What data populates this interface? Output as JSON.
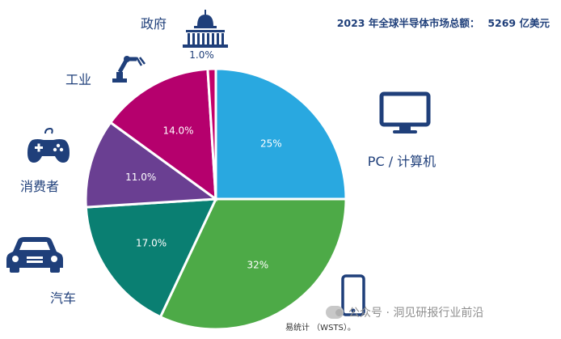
{
  "header": {
    "title": "2023 年全球半导体市场总额：",
    "value": "5269 亿美元"
  },
  "chart_data": {
    "type": "pie",
    "title": "2023 年全球半导体市场总额： 5269 亿美元",
    "slices": [
      {
        "category": "PC / 计算机",
        "value": 25,
        "label": "25%",
        "color": "#29a8e0",
        "icon": "monitor-icon"
      },
      {
        "category": "",
        "value": 32,
        "label": "32%",
        "color": "#4daa47",
        "icon": "smartphone-icon"
      },
      {
        "category": "汽车",
        "value": 17,
        "label": "17.0%",
        "color": "#0a7f72",
        "icon": "car-icon"
      },
      {
        "category": "消费者",
        "value": 11,
        "label": "11.0%",
        "color": "#6a3f92",
        "icon": "gamepad-icon"
      },
      {
        "category": "工业",
        "value": 14,
        "label": "14.0%",
        "color": "#b5006d",
        "icon": "robot-arm-icon"
      },
      {
        "category": "政府",
        "value": 1,
        "label": "1.0%",
        "color": "#c4006a",
        "icon": "capitol-building-icon"
      }
    ],
    "start_angle_deg": 0,
    "direction": "clockwise",
    "label_color": "#ffffff",
    "category_label_color": "#1f3f7a",
    "icon_color": "#1f3f7a"
  },
  "footer": {
    "source": "易统计 （WSTS）。"
  },
  "watermark": {
    "text": "公众号 · 洞见研报行业前沿"
  }
}
